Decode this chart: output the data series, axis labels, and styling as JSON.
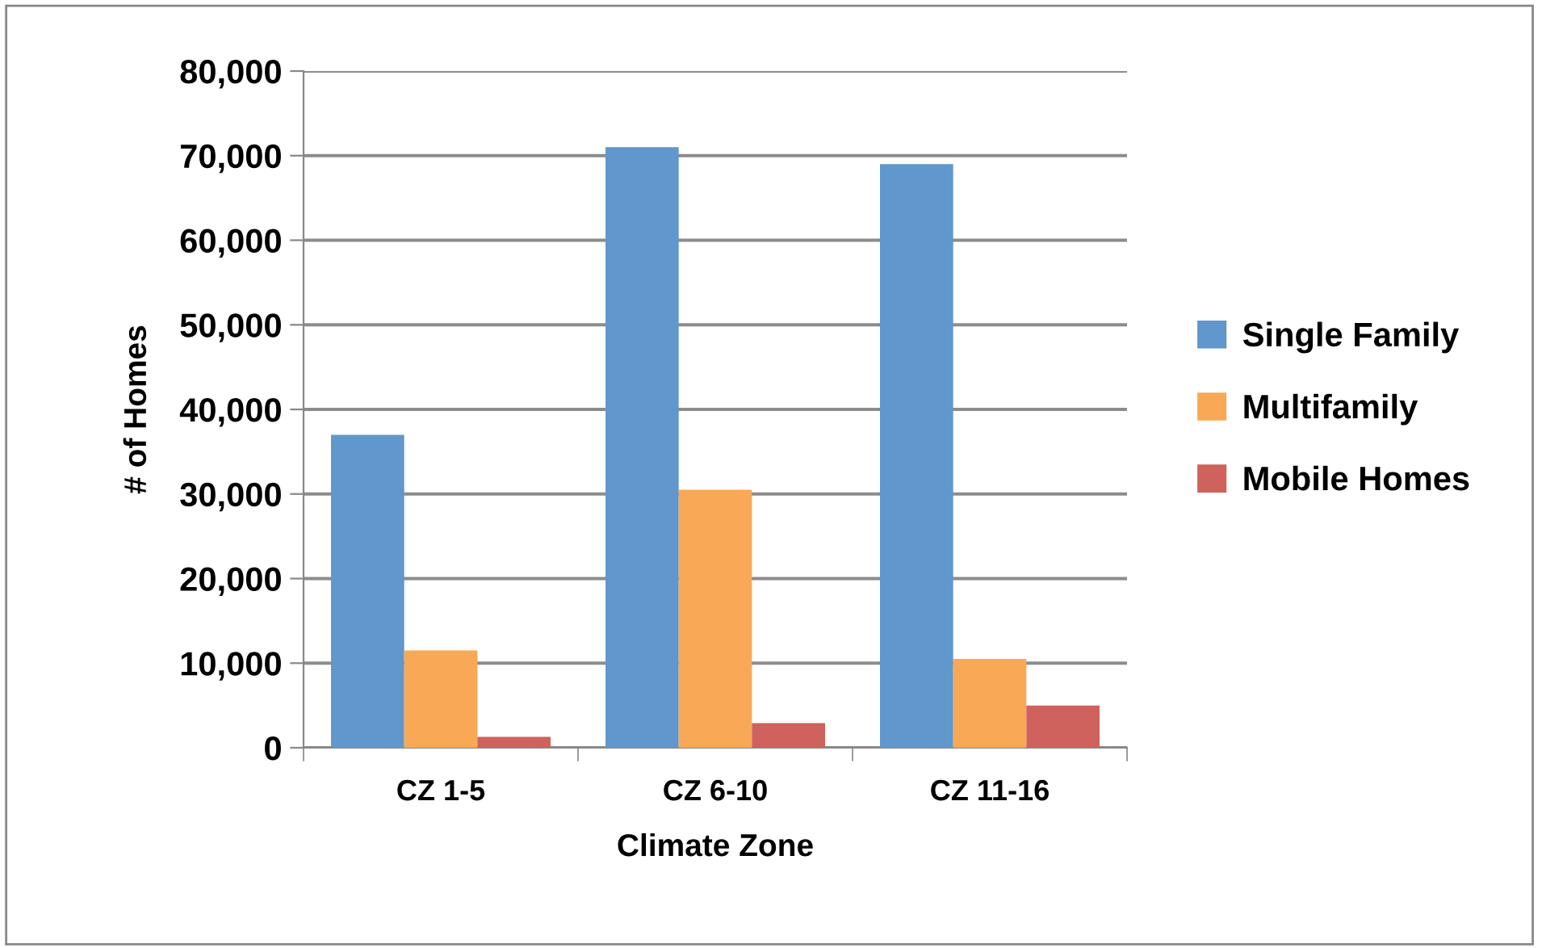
{
  "chart_data": {
    "type": "bar",
    "xlabel": "Climate Zone",
    "ylabel": "# of Homes",
    "categories": [
      "CZ 1-5",
      "CZ 6-10",
      "CZ 11-16"
    ],
    "series": [
      {
        "name": "Single Family",
        "color": "#6097cc",
        "values": [
          37000,
          71000,
          69000
        ]
      },
      {
        "name": "Multifamily",
        "color": "#f9a856",
        "values": [
          11500,
          30500,
          10500
        ]
      },
      {
        "name": "Mobile Homes",
        "color": "#cf625c",
        "values": [
          1300,
          2900,
          5000
        ]
      }
    ],
    "ylim": [
      0,
      80000
    ],
    "yticks": [
      {
        "value": 0,
        "label": "0"
      },
      {
        "value": 10000,
        "label": "10,000"
      },
      {
        "value": 20000,
        "label": "20,000"
      },
      {
        "value": 30000,
        "label": "30,000"
      },
      {
        "value": 40000,
        "label": "40,000"
      },
      {
        "value": 50000,
        "label": "50,000"
      },
      {
        "value": 60000,
        "label": "60,000"
      },
      {
        "value": 70000,
        "label": "70,000"
      },
      {
        "value": 80000,
        "label": "80,000"
      }
    ],
    "grid": "y",
    "legend": "right"
  }
}
